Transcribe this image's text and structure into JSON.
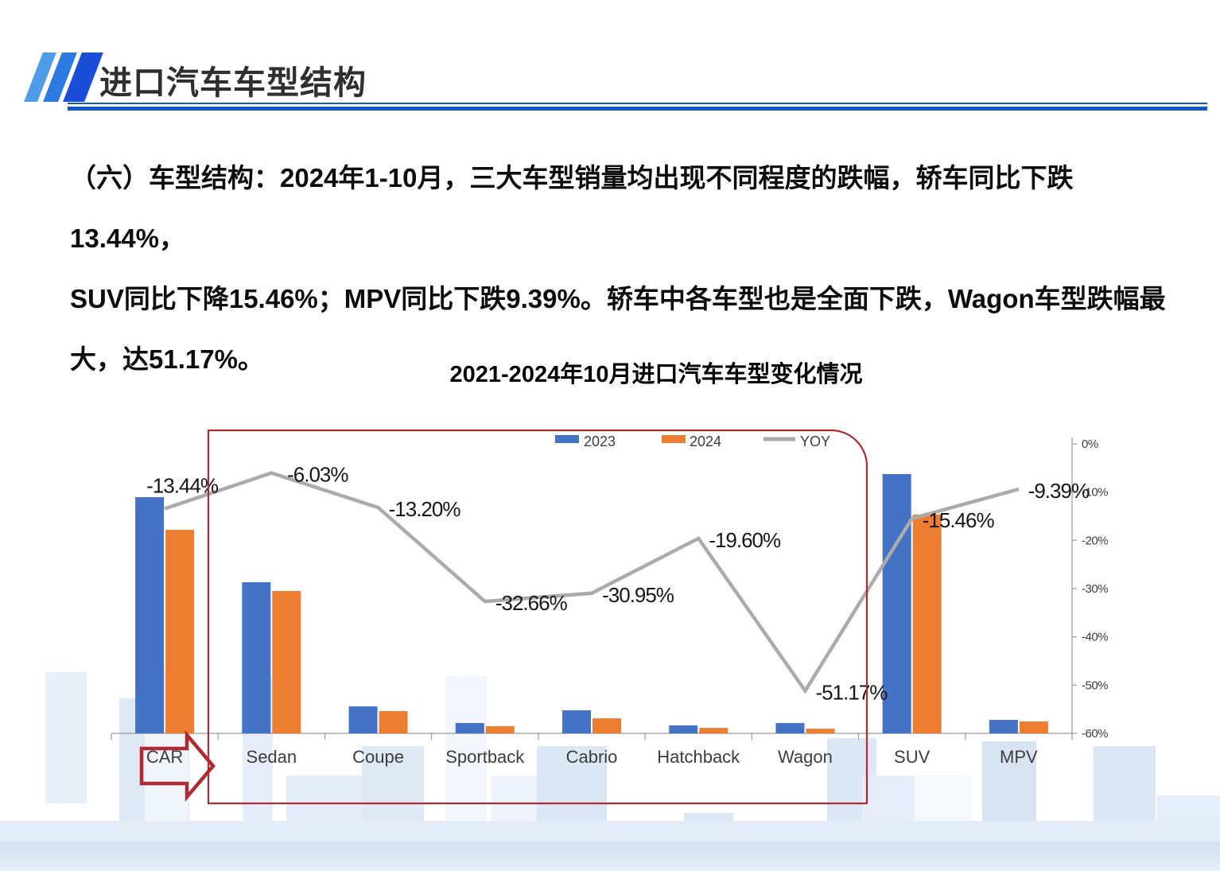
{
  "slide": {
    "header": {
      "title": "进口汽车车型结构"
    },
    "body": {
      "lines": [
        "（六）车型结构：2024年1-10月，三大车型销量均出现不同程度的跌幅，轿车同比下跌13.44%，",
        "SUV同比下降15.46%；MPV同比下跌9.39%。轿车中各车型也是全面下跌，Wagon车型跌幅最",
        "大，达51.17%。"
      ]
    }
  },
  "chart_data": {
    "type": "bar",
    "subtype": "bar+line combo, dual axis",
    "title": "2021-2024年10月进口汽车车型变化情况",
    "categories": [
      "CAR",
      "Sedan",
      "Coupe",
      "Sportback",
      "Cabrio",
      "Hatchback",
      "Wagon",
      "SUV",
      "MPV"
    ],
    "series": [
      {
        "name": "2023",
        "chart": "bar",
        "color": "#4472C4",
        "axis": "left",
        "values": [
          91.1,
          58.3,
          10.4,
          4.0,
          8.9,
          3.1,
          4.0,
          100.0,
          5.2
        ],
        "note": "left axis unlabeled; values are relative bar heights, SUV 2023 = 100"
      },
      {
        "name": "2024",
        "chart": "bar",
        "color": "#ED7D31",
        "axis": "left",
        "values": [
          78.5,
          54.9,
          8.6,
          2.8,
          5.8,
          2.1,
          1.8,
          84.4,
          4.6
        ]
      },
      {
        "name": "YOY",
        "chart": "line",
        "color": "#ABABAB",
        "axis": "right",
        "values": [
          -13.44,
          -6.03,
          -13.2,
          -32.66,
          -30.95,
          -19.6,
          -51.17,
          -15.46,
          -9.39
        ],
        "labels": [
          "-13.44%",
          "-6.03%",
          "-13.20%",
          "-32.66%",
          "-30.95%",
          "-19.60%",
          "-51.17%",
          "-15.46%",
          "-9.39%"
        ]
      }
    ],
    "right_axis": {
      "min": -60,
      "max": 0,
      "tick_values": [
        0,
        -10,
        -20,
        -30,
        -40,
        -50,
        -60
      ],
      "tick_labels": [
        "0%",
        "-10%",
        "-20%",
        "-30%",
        "-40%",
        "-50%",
        "-60%"
      ]
    },
    "left_axis": {
      "visible": false
    },
    "grid": false,
    "legend": {
      "position": "top-center",
      "items": [
        {
          "label": "2023",
          "color": "#4472C4",
          "shape": "rect"
        },
        {
          "label": "2024",
          "color": "#ED7D31",
          "shape": "rect"
        },
        {
          "label": "YOY",
          "color": "#ABABAB",
          "shape": "line"
        }
      ]
    },
    "annotations": {
      "highlight_box": {
        "from_category": "Sedan",
        "to_category": "Wagon",
        "color": "#B02B31"
      },
      "arrow": {
        "at_category": "CAR",
        "direction": "right",
        "color": "#B02B31"
      }
    }
  },
  "colors": {
    "bar_2023": "#4472C4",
    "bar_2024": "#ED7D31",
    "yoy_line": "#ABABAB",
    "annotation_red": "#B02B31",
    "header_accent": "#1159C6",
    "axis_gray": "#9A9A9A"
  }
}
